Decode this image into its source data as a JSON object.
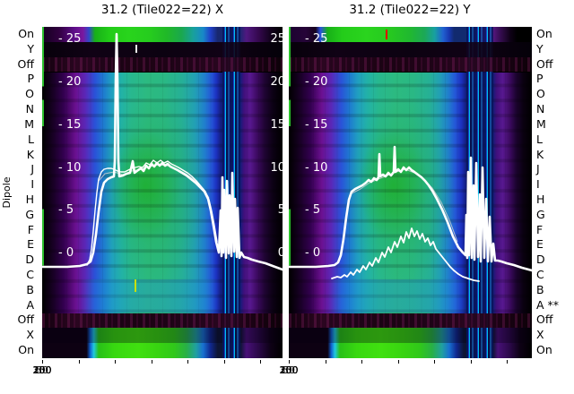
{
  "figure": {
    "title_left": "31.2 (Tile022=22) X",
    "title_right": "31.2 (Tile022=22) Y",
    "y_axis_label": "Dipole",
    "row_labels_left": [
      "On",
      "Y",
      "Off",
      "P",
      "O",
      "N",
      "M",
      "L",
      "K",
      "J",
      "I",
      "H",
      "G",
      "F",
      "E",
      "D",
      "C",
      "B",
      "A",
      "Off",
      "X",
      "On"
    ],
    "row_labels_right": [
      "On",
      "Y",
      "Off",
      "P",
      "O",
      "N",
      "M",
      "L",
      "K",
      "J",
      "I",
      "H",
      "G",
      "F",
      "E",
      "D",
      "C",
      "B",
      "A **",
      "Off",
      "X",
      "On"
    ],
    "x_tick_labels": [
      "0",
      "50",
      "100",
      "150",
      "200",
      "250",
      "300"
    ],
    "scale_labels": [
      "- 25",
      "- 20",
      "- 15",
      "- 10",
      "- 5",
      "- 0"
    ],
    "scale_labels_right_edge": [
      "25",
      "20",
      "15",
      "10",
      "5",
      "0"
    ]
  },
  "colors": {
    "curve": "#ffffff",
    "heat_low": "#000000",
    "heat_purple": "#6b1090",
    "heat_blue": "#2a52d8",
    "heat_cyan": "#20a0c0",
    "heat_green": "#28c818",
    "rfi_blue": "#00c8f0",
    "marker_yellow": "#c8df00",
    "marker_red": "#dd0000"
  },
  "chart_data": {
    "type": "heatmap",
    "grid": false,
    "legend": false,
    "x_axis_range": [
      0,
      330
    ],
    "x_ticks": [
      0,
      50,
      100,
      150,
      200,
      250,
      300
    ],
    "power_scale_ticks_db": [
      25,
      20,
      15,
      10,
      5,
      0
    ],
    "rows": [
      "On",
      "Y",
      "Off",
      "P",
      "O",
      "N",
      "M",
      "L",
      "K",
      "J",
      "I",
      "H",
      "G",
      "F",
      "E",
      "D",
      "C",
      "B",
      "A",
      "Off",
      "X",
      "On"
    ],
    "panels": [
      {
        "title": "31.2 (Tile022=22) X",
        "overlay_main_curve_approx_x_db": [
          [
            0,
            -1.5
          ],
          [
            60,
            -1.2
          ],
          [
            70,
            1.5
          ],
          [
            78,
            7
          ],
          [
            85,
            9.5
          ],
          [
            100,
            9.7
          ],
          [
            103,
            26
          ],
          [
            106,
            9.7
          ],
          [
            125,
            10.2
          ],
          [
            150,
            10.5
          ],
          [
            175,
            10
          ],
          [
            200,
            8.8
          ],
          [
            225,
            6.5
          ],
          [
            235,
            3
          ],
          [
            243,
            -0.5
          ],
          [
            248,
            7
          ],
          [
            253,
            -0.8
          ],
          [
            258,
            11
          ],
          [
            263,
            -0.5
          ],
          [
            268,
            8
          ],
          [
            273,
            -0.8
          ],
          [
            285,
            -1
          ],
          [
            300,
            -1.3
          ],
          [
            330,
            -2
          ]
        ]
      },
      {
        "title": "31.2 (Tile022=22) Y",
        "overlay_main_curve_approx_x_db": [
          [
            0,
            -1.5
          ],
          [
            68,
            -1.2
          ],
          [
            75,
            2
          ],
          [
            82,
            6.5
          ],
          [
            90,
            9
          ],
          [
            105,
            10
          ],
          [
            118,
            10.5
          ],
          [
            124,
            15
          ],
          [
            130,
            10.5
          ],
          [
            145,
            15.5
          ],
          [
            160,
            10.8
          ],
          [
            180,
            9.5
          ],
          [
            200,
            6.5
          ],
          [
            220,
            3
          ],
          [
            238,
            -0.5
          ],
          [
            245,
            8
          ],
          [
            250,
            13
          ],
          [
            255,
            -0.5
          ],
          [
            262,
            12
          ],
          [
            268,
            -0.8
          ],
          [
            275,
            9
          ],
          [
            282,
            2
          ],
          [
            290,
            -0.8
          ],
          [
            310,
            -1.5
          ],
          [
            330,
            -2
          ]
        ],
        "overlay_secondary_curve_approx_x_db": [
          [
            60,
            -1.2
          ],
          [
            80,
            0
          ],
          [
            100,
            1.5
          ],
          [
            120,
            3
          ],
          [
            140,
            4.5
          ],
          [
            155,
            5.5
          ],
          [
            165,
            5.8
          ],
          [
            175,
            5
          ],
          [
            190,
            4
          ],
          [
            205,
            2.5
          ],
          [
            220,
            1
          ],
          [
            235,
            -0.5
          ],
          [
            250,
            -1.2
          ]
        ]
      }
    ]
  },
  "overlays": {
    "left_main": "0,268 28,268 42,267 50,265 54,262 57,252 60,232 63,206 66,184 69,174 73,170 77,168 80,167 81,150 82,60 83,8 84,60 85,150 86,167 90,166 94,164 98,163 101,150 103,163 107,160 110,158 113,161 116,155 119,158 122,153 125,156 128,152 131,155 134,152 137,155 140,153 143,156 147,158 151,160 156,163 161,166 166,170 171,174 176,179 181,184 185,192 188,205 191,222 194,240 197,252 199,205 200,256 201,168 202,252 203,182 205,258 206,172 208,253 209,188 211,256 212,163 214,251 215,192 217,257 218,202 220,258 222,252 225,257 229,258 234,260 241,262 249,264 257,267 268,271",
    "left_thin": "50,266 53,260 55,248 57,228 59,205 61,185 63,170 66,162 69,159 73,158 77,158 80,159 84,161 88,162 92,162 96,160 100,158 104,157 108,156 112,157 116,152 120,154 124,149 128,152 132,149 136,152 140,150 144,153 148,155 152,157 157,160 162,163 167,167 172,172 177,178 182,184 186,193 189,206 192,222 195,240",
    "left_grey": "63,172 70,164 80,162 90,165 100,161 110,159 120,156 130,154 140,155 150,159 160,164 170,171 180,181 186,191",
    "right_main": "0,268 30,268 44,267 51,266 55,263 58,255 61,237 64,213 67,193 70,184 74,181 78,179 82,177 86,174 89,171 92,173 95,169 98,171 100,168 101,142 102,167 105,165 108,167 111,163 114,166 117,162 118,134 119,162 122,159 125,162 128,157 131,160 134,157 137,160 140,162 144,165 148,168 152,172 156,177 160,183 165,192 171,204 177,218 183,234 189,246 194,252 197,255 198,210 199,258 200,162 201,255 203,146 204,258 206,177 207,260 209,152 211,257 213,187 214,262 216,157 218,258 220,192 222,262 224,212 226,262 228,242 230,261 233,261 237,262 243,264 251,266 260,269 271,272",
    "right_thin": "48,281 54,279 58,280 62,277 65,279 69,274 72,277 76,271 79,274 83,267 86,271 90,263 93,267 97,258 100,263 104,252 107,257 111,246 114,252 118,240 121,246 125,234 128,241 131,229 134,236 137,225 140,234 143,228 146,237 149,231 152,240 155,236 158,244 161,240 164,248 168,253 172,258 176,263 180,268 184,272 189,276 194,279 200,281 206,283 212,284",
    "right_grey": "70,186 80,181 90,174 100,170 110,166 120,162 130,159 140,163 150,170 160,180 170,196 180,218 188,240"
  }
}
